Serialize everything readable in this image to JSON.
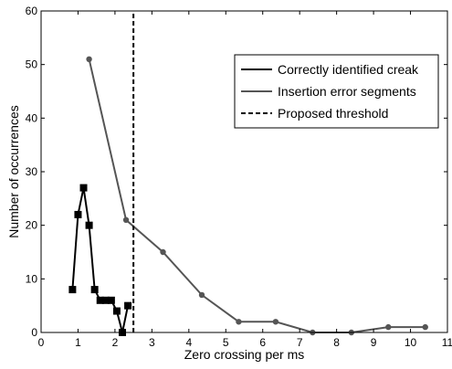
{
  "chart_data": {
    "type": "line",
    "title": "",
    "xlabel": "Zero crossing per ms",
    "ylabel": "Number of occurrences",
    "xlim": [
      0,
      11
    ],
    "ylim": [
      0,
      60
    ],
    "xticks": [
      0,
      1,
      2,
      3,
      4,
      5,
      6,
      7,
      8,
      9,
      10,
      11
    ],
    "yticks": [
      0,
      10,
      20,
      30,
      40,
      50,
      60
    ],
    "grid": false,
    "legend_position": "top-right",
    "series": [
      {
        "name": "Correctly identified creak",
        "color": "#000000",
        "marker": "square",
        "line_style": "solid",
        "x": [
          0.85,
          1.0,
          1.15,
          1.3,
          1.45,
          1.6,
          1.75,
          1.9,
          2.05,
          2.2,
          2.35
        ],
        "y": [
          8,
          22,
          27,
          20,
          8,
          6,
          6,
          6,
          4,
          0,
          5
        ]
      },
      {
        "name": "Insertion error segments",
        "color": "#555555",
        "marker": "circle",
        "line_style": "solid",
        "x": [
          1.3,
          2.3,
          3.3,
          4.35,
          5.35,
          6.35,
          7.35,
          8.4,
          9.4,
          10.4
        ],
        "y": [
          51,
          21,
          15,
          7,
          2,
          2,
          0,
          0,
          1,
          1
        ]
      },
      {
        "name": "Proposed threshold",
        "color": "#000000",
        "marker": "none",
        "line_style": "dashed",
        "x": [
          2.5,
          2.5
        ],
        "y": [
          0,
          60
        ]
      }
    ]
  }
}
